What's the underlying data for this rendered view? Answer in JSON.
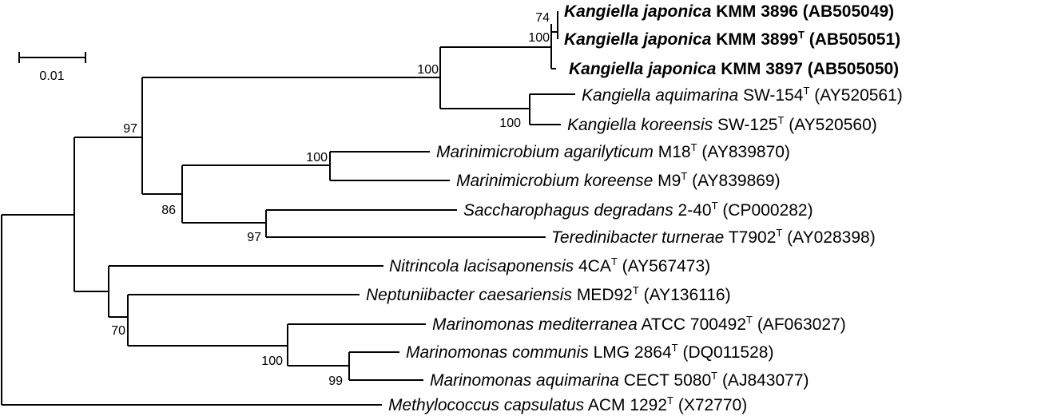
{
  "scale_bar": {
    "label": "0.01"
  },
  "taxa": [
    {
      "species": "Kangiella japonica",
      "strain": "KMM 3896",
      "type_strain": false,
      "accession": "(AB505049)",
      "bold": true
    },
    {
      "species": "Kangiella japonica",
      "strain": "KMM 3899",
      "type_strain": true,
      "accession": "(AB505051)",
      "bold": true
    },
    {
      "species": "Kangiella japonica",
      "strain": "KMM 3897",
      "type_strain": false,
      "accession": "(AB505050)",
      "bold": true
    },
    {
      "species": "Kangiella aquimarina",
      "strain": "SW-154",
      "type_strain": true,
      "accession": "(AY520561)",
      "bold": false
    },
    {
      "species": "Kangiella koreensis",
      "strain": "SW-125",
      "type_strain": true,
      "accession": "(AY520560)",
      "bold": false
    },
    {
      "species": "Marinimicrobium agarilyticum",
      "strain": "M18",
      "type_strain": true,
      "accession": "(AY839870)",
      "bold": false
    },
    {
      "species": "Marinimicrobium koreense",
      "strain": "M9",
      "type_strain": true,
      "accession": "(AY839869)",
      "bold": false
    },
    {
      "species": "Saccharophagus degradans",
      "strain": "2-40",
      "type_strain": true,
      "accession": "(CP000282)",
      "bold": false
    },
    {
      "species": "Teredinibacter turnerae",
      "strain": "T7902",
      "type_strain": true,
      "accession": "(AY028398)",
      "bold": false
    },
    {
      "species": "Nitrincola lacisaponensis",
      "strain": "4CA",
      "type_strain": true,
      "accession": "(AY567473)",
      "bold": false
    },
    {
      "species": "Neptuniibacter caesariensis",
      "strain": "MED92",
      "type_strain": true,
      "accession": "(AY136116)",
      "bold": false
    },
    {
      "species": "Marinomonas mediterranea",
      "strain": "ATCC 700492",
      "type_strain": true,
      "accession": "(AF063027)",
      "bold": false
    },
    {
      "species": "Marinomonas communis",
      "strain": "LMG 2864",
      "type_strain": true,
      "accession": "(DQ011528)",
      "bold": false
    },
    {
      "species": "Marinomonas aquimarina",
      "strain": "CECT 5080",
      "type_strain": true,
      "accession": "(AJ843077)",
      "bold": false
    },
    {
      "species": "Methylococcus capsulatus",
      "strain": "ACM 1292",
      "type_strain": true,
      "accession": "(X72770)",
      "bold": false
    }
  ],
  "type_strain_mark": "T",
  "bootstrap": {
    "japonica_inner": "74",
    "japonica_clade": "100",
    "kangiella_genus": "100",
    "aquimarina_koreensis": "100",
    "kangiella_marinimicrobium": "97",
    "marinimicrobium": "100",
    "marini_sacch_group": "86",
    "sacch_tered": "97",
    "nitrincola_marinomonas": "70",
    "marinomonas": "100",
    "communis_aquimarina": "99"
  }
}
